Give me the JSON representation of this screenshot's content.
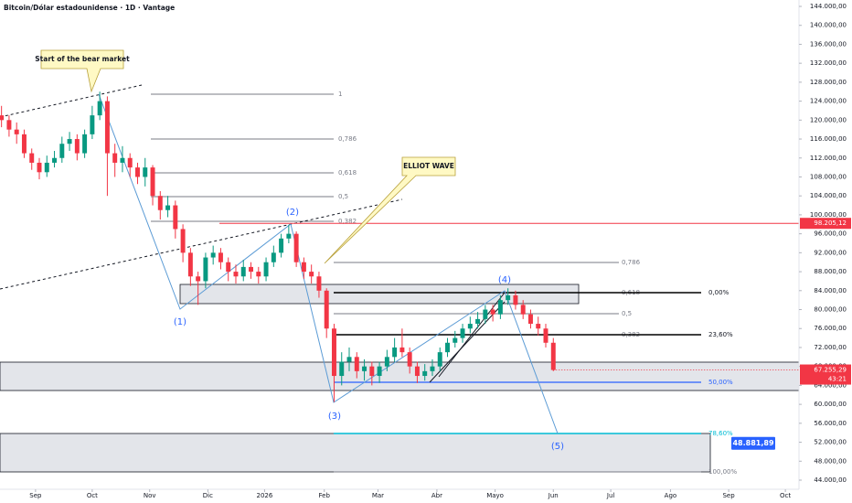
{
  "chart_data": {
    "type": "candlestick",
    "title": "Bitcoin/Dólar estadounidense · 1D · Vantage",
    "up_color": "#089981",
    "down_color": "#f23645",
    "candles": {
      "open": [
        121000,
        120000,
        118000,
        117000,
        113000,
        111000,
        109000,
        111000,
        112000,
        115000,
        116000,
        113000,
        117000,
        121000,
        124000,
        113000,
        111000,
        112000,
        110000,
        108000,
        110000,
        104000,
        101000,
        102000,
        97000,
        92000,
        87000,
        86000,
        91000,
        92000,
        90000,
        88000,
        87000,
        89000,
        88000,
        87000,
        90000,
        92000,
        95000,
        96000,
        90000,
        88000,
        87000,
        84000,
        76000,
        66000,
        69000,
        70000,
        67000,
        68000,
        66000,
        68000,
        70000,
        72000,
        71000,
        68000,
        66000,
        67000,
        68000,
        71000,
        73000,
        74000,
        76000,
        77000,
        78000,
        80000,
        79000,
        82000,
        83000,
        81000,
        79000,
        77000,
        76000,
        73000
      ],
      "high": [
        123000,
        121000,
        119500,
        118000,
        114000,
        112000,
        112500,
        113500,
        116500,
        117500,
        117000,
        118000,
        123000,
        126000,
        125000,
        115000,
        114500,
        113000,
        111000,
        112000,
        110500,
        105000,
        104000,
        103000,
        98000,
        93000,
        88000,
        92000,
        93500,
        93000,
        91000,
        89500,
        90500,
        90000,
        89000,
        91000,
        93500,
        96000,
        97900,
        96500,
        91000,
        89500,
        88000,
        84500,
        77000,
        71000,
        72000,
        71000,
        69500,
        69000,
        69000,
        71500,
        74000,
        76000,
        72000,
        69000,
        68500,
        69500,
        72000,
        74000,
        75500,
        77000,
        78500,
        79500,
        81000,
        81000,
        83000,
        84500,
        84000,
        82000,
        80000,
        78500,
        77000,
        74000
      ],
      "low": [
        118500,
        116500,
        115000,
        112000,
        109500,
        107500,
        108000,
        110000,
        111000,
        113500,
        111500,
        112000,
        116000,
        120000,
        104000,
        108000,
        109000,
        108000,
        106500,
        106000,
        102000,
        99000,
        99500,
        95000,
        90000,
        85000,
        81000,
        84500,
        89500,
        88500,
        86000,
        85500,
        86000,
        86500,
        85500,
        86000,
        89000,
        91000,
        94000,
        89000,
        86500,
        85500,
        82500,
        74000,
        60500,
        64000,
        67000,
        65500,
        65000,
        64000,
        64500,
        67000,
        69000,
        70000,
        66500,
        64500,
        65000,
        66000,
        67000,
        70000,
        72000,
        73000,
        75000,
        76000,
        77000,
        77500,
        78000,
        81000,
        80000,
        78000,
        76000,
        74500,
        72000,
        67000
      ],
      "close": [
        120000,
        118000,
        117000,
        113000,
        111000,
        109000,
        111000,
        112000,
        115000,
        116000,
        113000,
        117000,
        121000,
        124000,
        113000,
        111000,
        112000,
        110000,
        108000,
        110000,
        104000,
        101000,
        102000,
        97000,
        92000,
        87000,
        86000,
        91000,
        92000,
        90000,
        88000,
        87000,
        89000,
        88000,
        87000,
        90000,
        92000,
        95000,
        96000,
        90000,
        88000,
        87000,
        84000,
        76000,
        66000,
        69000,
        70000,
        67000,
        68000,
        66000,
        68000,
        70000,
        72000,
        71000,
        68000,
        66000,
        67000,
        68000,
        71000,
        73000,
        74000,
        76000,
        77000,
        78000,
        80000,
        79000,
        82000,
        83000,
        81000,
        79000,
        77000,
        76000,
        73000,
        67255.29
      ]
    },
    "xlim": [
      -0.2,
      105.5
    ],
    "xticks": [
      {
        "value": 4.5,
        "label": "Sep"
      },
      {
        "value": 12,
        "label": "Oct"
      },
      {
        "value": 19.6,
        "label": "Nov"
      },
      {
        "value": 27.3,
        "label": "Dic"
      },
      {
        "value": 34.8,
        "label": "2026"
      },
      {
        "value": 42.7,
        "label": "Feb"
      },
      {
        "value": 49.8,
        "label": "Mar"
      },
      {
        "value": 57.6,
        "label": "Abr"
      },
      {
        "value": 65.3,
        "label": "Mayo"
      },
      {
        "value": 73,
        "label": "Jun"
      },
      {
        "value": 80.6,
        "label": "Jul"
      },
      {
        "value": 88.5,
        "label": "Ago"
      },
      {
        "value": 96.2,
        "label": "Sep"
      },
      {
        "value": 103.7,
        "label": "Oct"
      }
    ],
    "ylim": [
      42070,
      145350
    ],
    "yticks": [
      {
        "value": 44000,
        "label": "44.000,00"
      },
      {
        "value": 48000,
        "label": "48.000,00"
      },
      {
        "value": 52000,
        "label": "52.000,00"
      },
      {
        "value": 56000,
        "label": "56.000,00"
      },
      {
        "value": 60000,
        "label": "60.000,00"
      },
      {
        "value": 64000,
        "label": "64.000,00"
      },
      {
        "value": 68000,
        "label": "68.000,00"
      },
      {
        "value": 72000,
        "label": "72.000,00"
      },
      {
        "value": 76000,
        "label": "76.000,00"
      },
      {
        "value": 80000,
        "label": "80.000,00"
      },
      {
        "value": 84000,
        "label": "84.000,00"
      },
      {
        "value": 88000,
        "label": "88.000,00"
      },
      {
        "value": 92000,
        "label": "92.000,00"
      },
      {
        "value": 96000,
        "label": "96.000,00"
      },
      {
        "value": 100000,
        "label": "100.000,00"
      },
      {
        "value": 104000,
        "label": "104.000,00"
      },
      {
        "value": 108000,
        "label": "108.000,00"
      },
      {
        "value": 112000,
        "label": "112.000,00"
      },
      {
        "value": 116000,
        "label": "116.000,00"
      },
      {
        "value": 120000,
        "label": "120.000,00"
      },
      {
        "value": 124000,
        "label": "124.000,00"
      },
      {
        "value": 128000,
        "label": "128.000,00"
      },
      {
        "value": 132000,
        "label": "132.000,00"
      },
      {
        "value": 136000,
        "label": "136.000,00"
      },
      {
        "value": 140000,
        "label": "140.000,00"
      },
      {
        "value": 144000,
        "label": "144.000,00"
      }
    ],
    "red_line": {
      "value": 98205.12,
      "label": "98.205,12",
      "color": "#f23645"
    },
    "current_price": {
      "value": 67255.29,
      "label": "67.255,29",
      "countdown": "43:21"
    },
    "target": {
      "value": 48881.89,
      "label": "48.881,89",
      "color": "#2962ff"
    },
    "fib_a": [
      "1",
      "0,786",
      "0,618",
      "0,5",
      "0,382"
    ],
    "fib_b": [
      "0,786",
      "0,618",
      "0,5",
      "0,382"
    ],
    "fib_c": [
      "0,00%",
      "23,60%",
      "50,00%",
      "78,60%",
      "100,00%"
    ],
    "wave_labels": [
      "(1)",
      "(2)",
      "(3)",
      "(4)",
      "(5)"
    ],
    "callouts": [
      "Start of the bear market",
      "ELLIOT WAVE"
    ]
  }
}
